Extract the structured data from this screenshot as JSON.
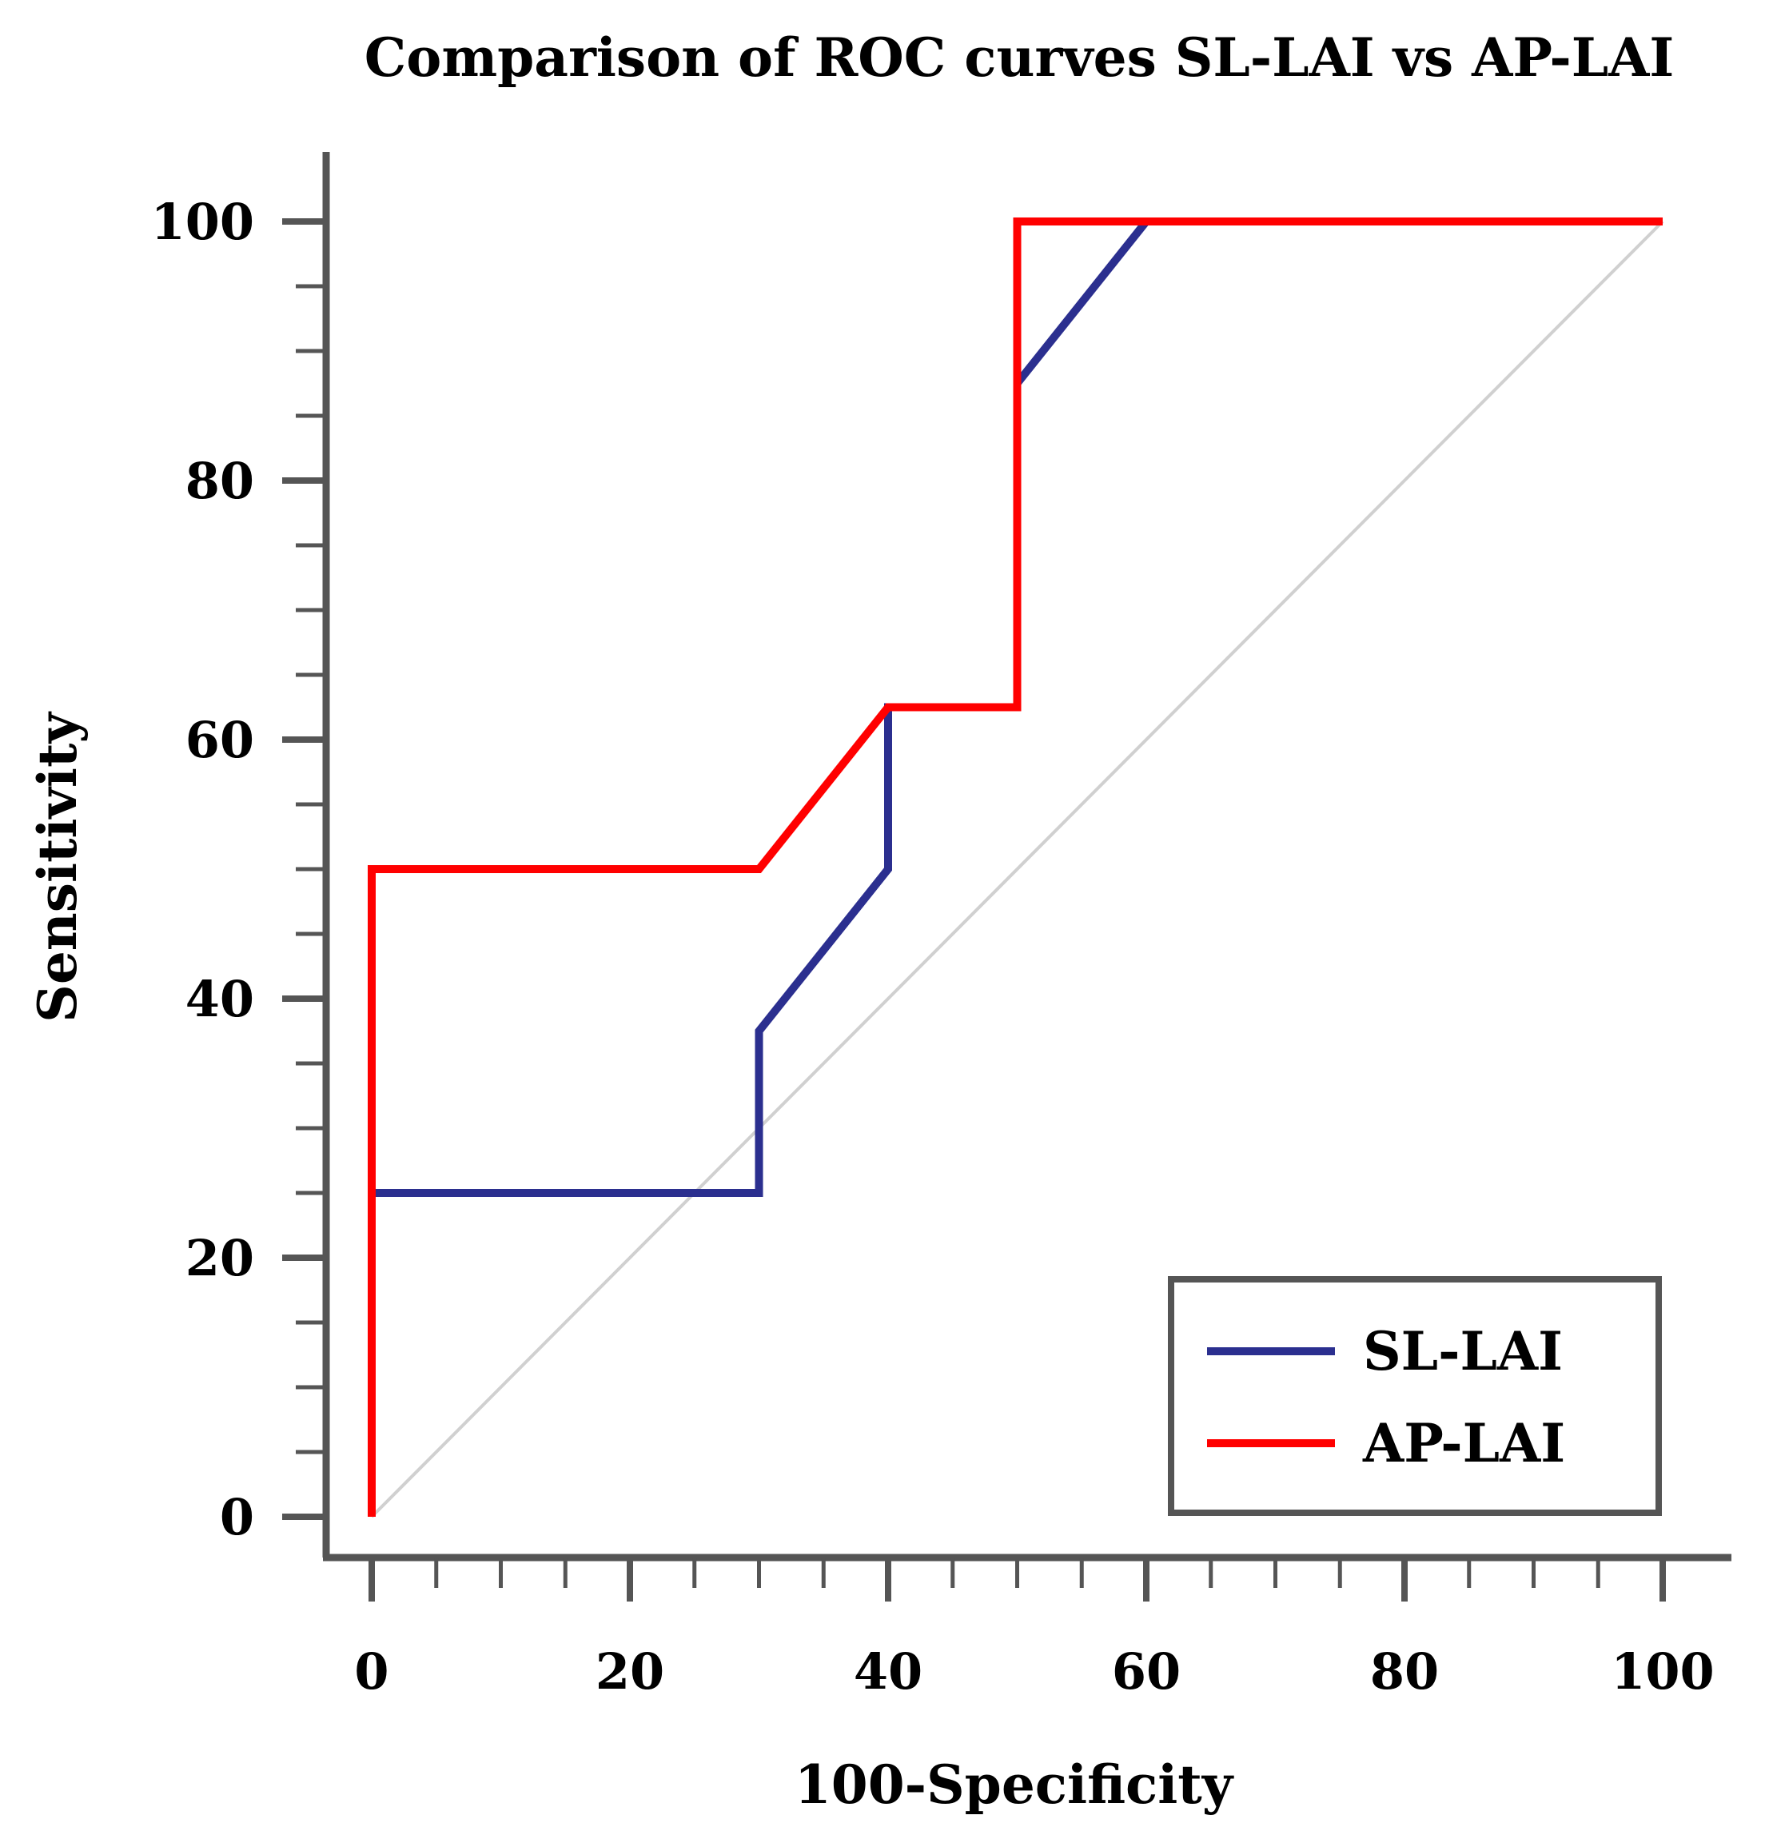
{
  "chart_data": {
    "type": "line",
    "title": "Comparison of ROC curves SL-LAI vs AP-LAI",
    "xlabel": "100-Specificity",
    "ylabel": "Sensitivity",
    "xlim": [
      0,
      100
    ],
    "ylim": [
      0,
      100
    ],
    "x_ticks": [
      0,
      20,
      40,
      60,
      80,
      100
    ],
    "y_ticks": [
      0,
      20,
      40,
      60,
      80,
      100
    ],
    "x_tick_labels": [
      "0",
      "20",
      "40",
      "60",
      "80",
      "100"
    ],
    "y_tick_labels": [
      "0",
      "20",
      "40",
      "60",
      "80",
      "100"
    ],
    "grid": false,
    "legend_position": "bottom-right",
    "reference_line": {
      "name": "chance diagonal",
      "color": "#d0d0d0",
      "x": [
        0,
        100
      ],
      "y": [
        0,
        100
      ]
    },
    "series": [
      {
        "name": "SL-LAI",
        "color": "#2b2f8f",
        "x": [
          0,
          0,
          30,
          30,
          40,
          40,
          50,
          50,
          60,
          100
        ],
        "y": [
          0,
          25,
          25,
          37.5,
          50,
          62.5,
          62.5,
          87.5,
          100,
          100
        ]
      },
      {
        "name": "AP-LAI",
        "color": "#ff0000",
        "x": [
          0,
          0,
          30,
          40,
          50,
          50,
          100
        ],
        "y": [
          0,
          50,
          50,
          62.5,
          62.5,
          100,
          100
        ]
      }
    ]
  },
  "colors": {
    "axis": "#555555",
    "text": "#000000"
  }
}
